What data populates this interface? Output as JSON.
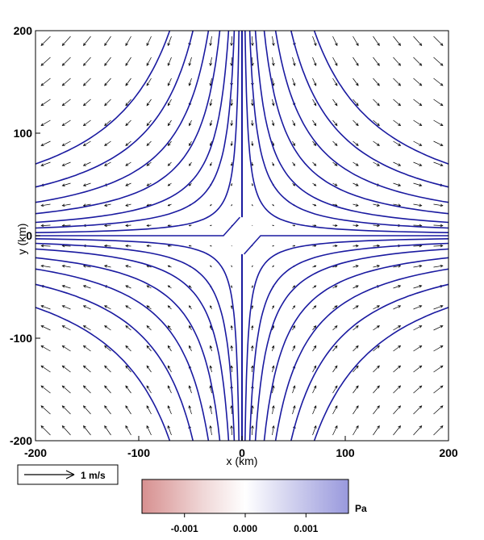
{
  "chart_data": {
    "type": "contour",
    "field": "pressure",
    "x_range": [
      -200,
      200
    ],
    "y_range": [
      -200,
      200
    ],
    "xlabel": "x (km)",
    "ylabel": "y (km)",
    "x_ticks": [
      -200,
      -100,
      0,
      100,
      200
    ],
    "y_ticks": [
      -200,
      -100,
      0,
      100,
      200
    ],
    "x_tick_labels": [
      "-200",
      "-100",
      "0",
      "100",
      "200"
    ],
    "y_tick_labels": [
      "-200",
      "-100",
      "0",
      "100",
      "200"
    ],
    "contour_color": "#1a1aa0",
    "contour_products": [
      0,
      600,
      1500,
      2600,
      4300,
      6500,
      9500,
      14000
    ],
    "vectors": {
      "description": "deformation flow u = x/L, v = -y/L",
      "spacing_km": 20,
      "reference_label": "1 m/s",
      "reference_speed_ms": 1
    },
    "colorbar": {
      "unit": "Pa",
      "tick_labels": [
        "-0.001",
        "0.000",
        "0.001"
      ],
      "tick_values": [
        -0.001,
        0.0,
        0.001
      ],
      "range": [
        -0.0017,
        0.0017
      ],
      "colors": [
        "#d79090",
        "#f0d8d8",
        "#ffffff",
        "#d6d6f0",
        "#9999dd"
      ]
    }
  }
}
